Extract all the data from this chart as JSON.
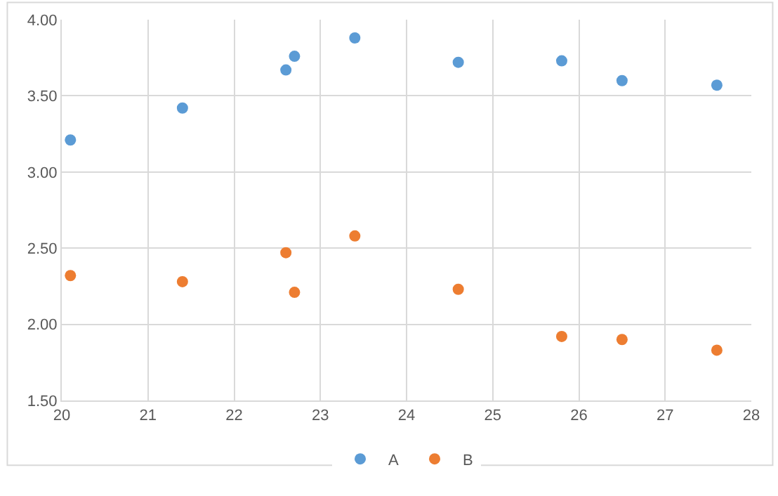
{
  "chart_data": {
    "type": "scatter",
    "x": [
      20.1,
      21.4,
      22.6,
      22.7,
      23.4,
      24.6,
      25.8,
      26.5,
      27.6
    ],
    "series": [
      {
        "name": "A",
        "color": "#5b9bd5",
        "values": [
          3.21,
          3.42,
          3.67,
          3.76,
          3.88,
          3.72,
          3.73,
          3.6,
          3.57
        ]
      },
      {
        "name": "B",
        "color": "#ed7d31",
        "values": [
          2.32,
          2.28,
          2.47,
          2.21,
          2.58,
          2.23,
          1.92,
          1.9,
          1.83
        ]
      }
    ],
    "xlim": [
      20,
      28
    ],
    "xticks": [
      20,
      21,
      22,
      23,
      24,
      25,
      26,
      27,
      28
    ],
    "ylim": [
      1.5,
      4
    ],
    "yticks": [
      {
        "value": 1.5,
        "label": "1.50"
      },
      {
        "value": 2,
        "label": "2.00"
      },
      {
        "value": 2.5,
        "label": "2.50"
      },
      {
        "value": 3,
        "label": "3.00"
      },
      {
        "value": 3.5,
        "label": "3.50"
      },
      {
        "value": 4,
        "label": "4.00"
      }
    ],
    "grid": true,
    "legend": "bottom",
    "marker": "circle"
  }
}
